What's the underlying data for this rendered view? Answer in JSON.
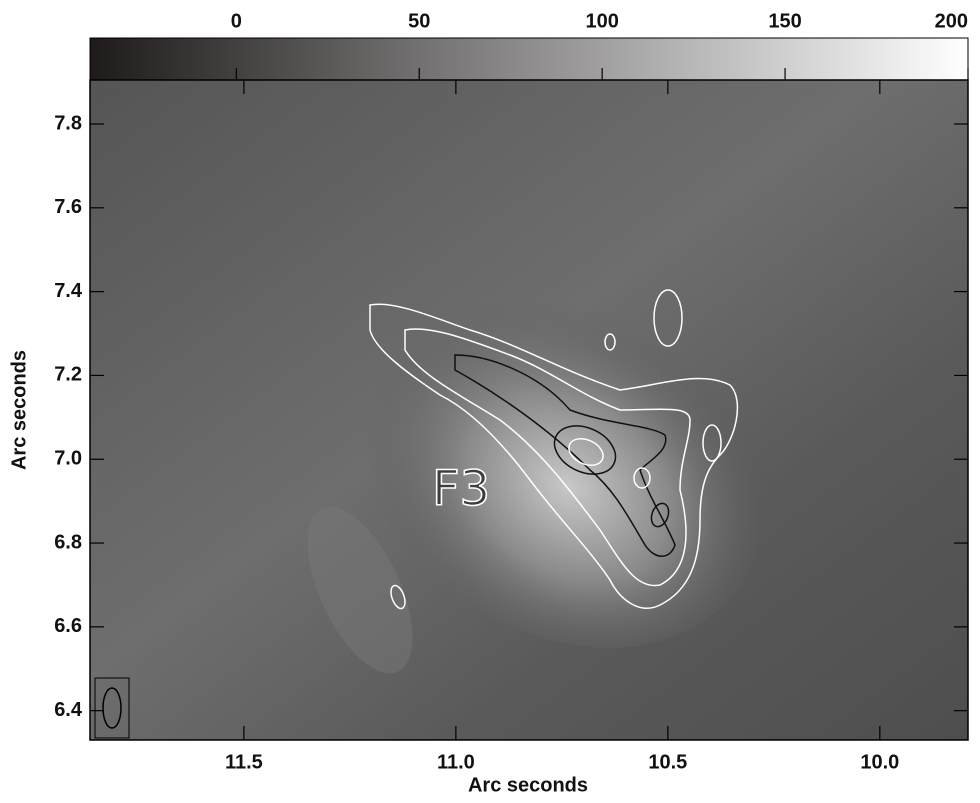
{
  "chart_data": {
    "type": "image",
    "xlabel": "Arc seconds",
    "ylabel": "Arc seconds",
    "xlim": [
      11.863,
      9.792
    ],
    "xticks": [
      11.5,
      {
        "value": 11,
        "label": "11.0"
      },
      10.5,
      {
        "value": 10,
        "label": "10.0"
      }
    ],
    "ylim": [
      6.33,
      7.905
    ],
    "yticks": [
      6.4,
      6.6,
      6.8,
      {
        "value": 7,
        "label": "7.0"
      },
      7.2,
      7.4,
      7.6,
      7.8
    ],
    "colorbar": {
      "lim": [
        -40,
        200
      ],
      "ticks": [
        0,
        50,
        100,
        150,
        200
      ]
    },
    "annotations": [
      "F3"
    ]
  }
}
